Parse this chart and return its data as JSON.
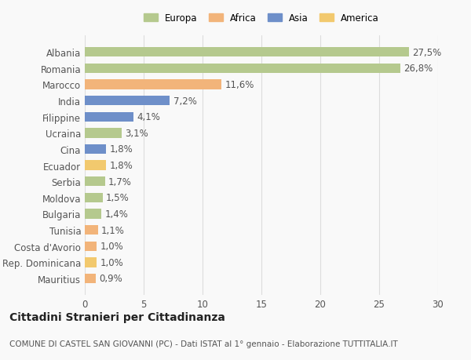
{
  "categories": [
    "Albania",
    "Romania",
    "Marocco",
    "India",
    "Filippine",
    "Ucraina",
    "Cina",
    "Ecuador",
    "Serbia",
    "Moldova",
    "Bulgaria",
    "Tunisia",
    "Costa d'Avorio",
    "Rep. Dominicana",
    "Mauritius"
  ],
  "values": [
    27.5,
    26.8,
    11.6,
    7.2,
    4.1,
    3.1,
    1.8,
    1.8,
    1.7,
    1.5,
    1.4,
    1.1,
    1.0,
    1.0,
    0.9
  ],
  "labels": [
    "27,5%",
    "26,8%",
    "11,6%",
    "7,2%",
    "4,1%",
    "3,1%",
    "1,8%",
    "1,8%",
    "1,7%",
    "1,5%",
    "1,4%",
    "1,1%",
    "1,0%",
    "1,0%",
    "0,9%"
  ],
  "colors": [
    "#b5c98e",
    "#b5c98e",
    "#f2b47a",
    "#6e8fc9",
    "#6e8fc9",
    "#b5c98e",
    "#6e8fc9",
    "#f2c96e",
    "#b5c98e",
    "#b5c98e",
    "#b5c98e",
    "#f2b47a",
    "#f2b47a",
    "#f2c96e",
    "#f2b47a"
  ],
  "legend_labels": [
    "Europa",
    "Africa",
    "Asia",
    "America"
  ],
  "legend_colors": [
    "#b5c98e",
    "#f2b47a",
    "#6e8fc9",
    "#f2c96e"
  ],
  "xlim": [
    0,
    30
  ],
  "xticks": [
    0,
    5,
    10,
    15,
    20,
    25,
    30
  ],
  "title": "Cittadini Stranieri per Cittadinanza",
  "subtitle": "COMUNE DI CASTEL SAN GIOVANNI (PC) - Dati ISTAT al 1° gennaio - Elaborazione TUTTITALIA.IT",
  "background_color": "#f9f9f9",
  "bar_height": 0.6,
  "grid_color": "#dddddd",
  "label_fontsize": 8.5,
  "tick_fontsize": 8.5,
  "title_fontsize": 10,
  "subtitle_fontsize": 7.5
}
